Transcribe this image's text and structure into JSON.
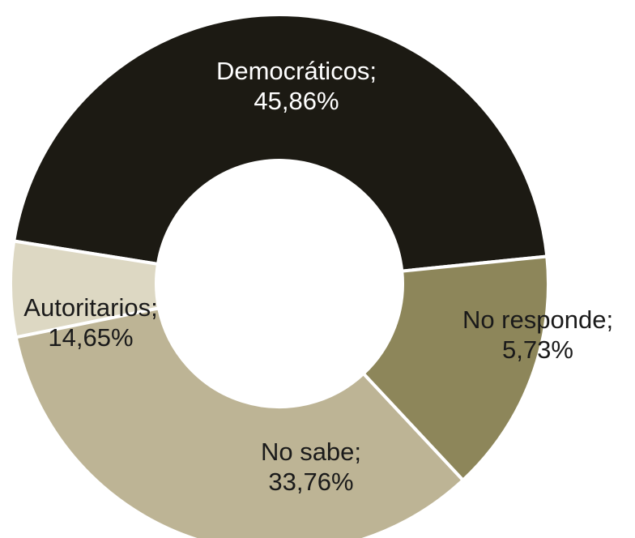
{
  "chart_data": {
    "type": "pie",
    "donut": true,
    "title": "",
    "slices": [
      {
        "label": "Democráticos",
        "value": 45.86,
        "line1": "Democráticos;",
        "line2": "45,86%",
        "color": "#1c1a13",
        "text_color": "#ffffff"
      },
      {
        "label": "No responde",
        "value": 5.73,
        "line1": "No responde;",
        "line2": "5,73%",
        "color": "#ddd8c3",
        "text_color": "#1a1a1a"
      },
      {
        "label": "No sabe",
        "value": 33.76,
        "line1": "No sabe;",
        "line2": "33,76%",
        "color": "#bdb495",
        "text_color": "#1a1a1a"
      },
      {
        "label": "Autoritarios",
        "value": 14.65,
        "line1": "Autoritarios;",
        "line2": "14,65%",
        "color": "#8d865a",
        "text_color": "#1a1a1a"
      }
    ]
  }
}
